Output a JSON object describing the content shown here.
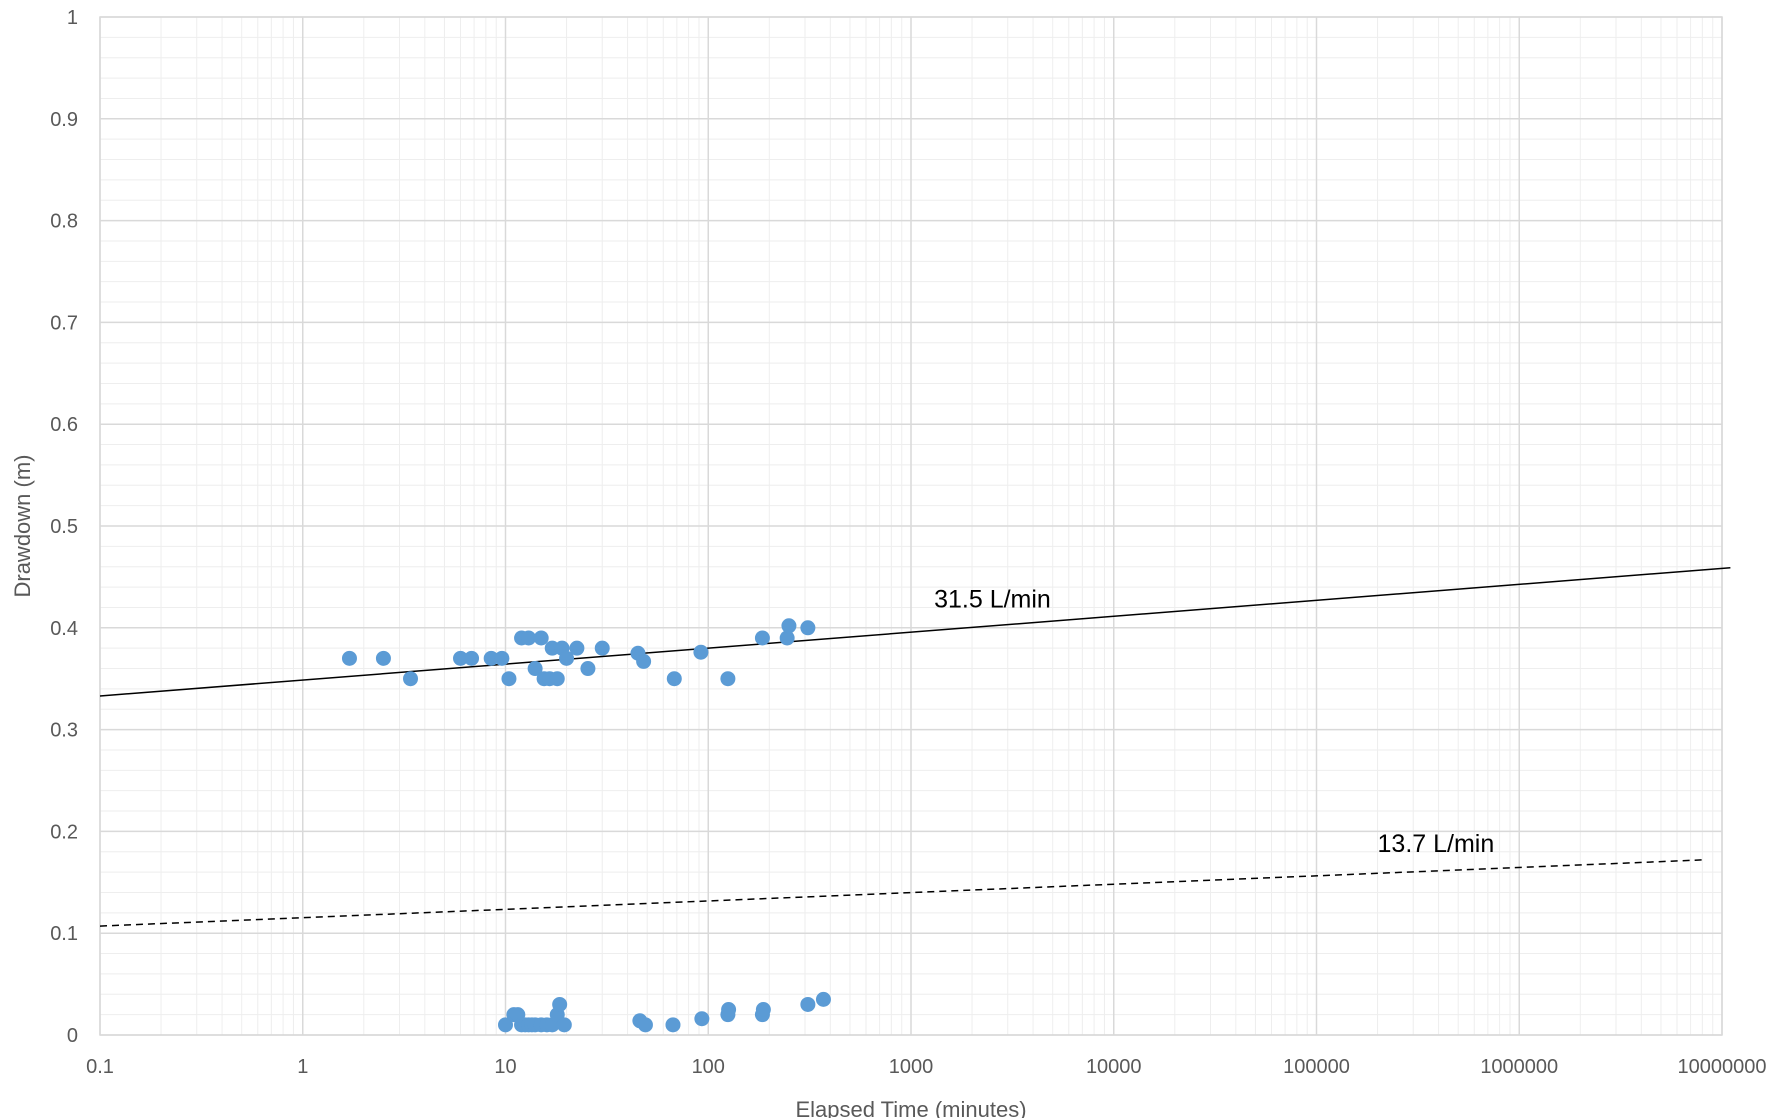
{
  "chart_data": {
    "type": "scatter",
    "title": "",
    "xlabel": "Elapsed Time (minutes)",
    "ylabel": "Drawdown (m)",
    "x_scale": "log",
    "xlim": [
      0.1,
      10000000
    ],
    "ylim": [
      0,
      1
    ],
    "x_ticks": [
      "0.1",
      "1",
      "10",
      "100",
      "1000",
      "10000",
      "100000",
      "1000000",
      "10000000"
    ],
    "y_ticks": [
      "0",
      "0.1",
      "0.2",
      "0.3",
      "0.4",
      "0.5",
      "0.6",
      "0.7",
      "0.8",
      "0.9",
      "1"
    ],
    "grid": "major and minor",
    "legend": "none",
    "colors": {
      "points": "#5B9BD5",
      "lines": "#000000",
      "grid_major": "#d9d9d9",
      "grid_minor": "#eeeeee"
    },
    "series": [
      {
        "x": [
          1.7,
          2.5,
          3.4,
          6,
          6.8,
          8.5,
          9.6,
          10.4,
          12,
          13,
          14,
          15,
          15.5,
          16.5,
          17,
          18,
          19,
          20,
          22.5,
          25.5,
          30,
          45,
          48,
          68,
          92,
          125,
          185,
          245,
          250,
          310
        ],
        "y": [
          0.37,
          0.37,
          0.35,
          0.37,
          0.37,
          0.37,
          0.37,
          0.35,
          0.39,
          0.39,
          0.36,
          0.39,
          0.35,
          0.35,
          0.38,
          0.35,
          0.38,
          0.37,
          0.38,
          0.36,
          0.38,
          0.375,
          0.367,
          0.35,
          0.376,
          0.35,
          0.39,
          0.39,
          0.402,
          0.4
        ]
      },
      {
        "x": [
          10,
          11,
          11.5,
          12,
          12.5,
          13,
          13.5,
          14,
          15,
          16,
          17,
          18,
          18.5,
          19.5,
          46,
          49,
          67,
          93,
          125,
          126,
          185,
          187,
          310,
          370
        ],
        "y": [
          0.01,
          0.02,
          0.02,
          0.01,
          0.01,
          0.01,
          0.01,
          0.01,
          0.01,
          0.01,
          0.01,
          0.02,
          0.03,
          0.01,
          0.014,
          0.01,
          0.01,
          0.016,
          0.02,
          0.025,
          0.02,
          0.025,
          0.03,
          0.035
        ]
      }
    ],
    "lines": [
      {
        "style": "solid",
        "label": "31.5 L/min",
        "x": [
          0.1,
          11000000
        ],
        "y": [
          0.333,
          0.459
        ]
      },
      {
        "style": "dashed",
        "label": "13.7 L/min",
        "x": [
          0.1,
          8000000
        ],
        "y": [
          0.107,
          0.172
        ]
      }
    ],
    "annotations": [
      {
        "text": "31.5 L/min",
        "x": 1300,
        "y": 0.42
      },
      {
        "text": "13.7 L/min",
        "x": 200000,
        "y": 0.18
      }
    ]
  }
}
